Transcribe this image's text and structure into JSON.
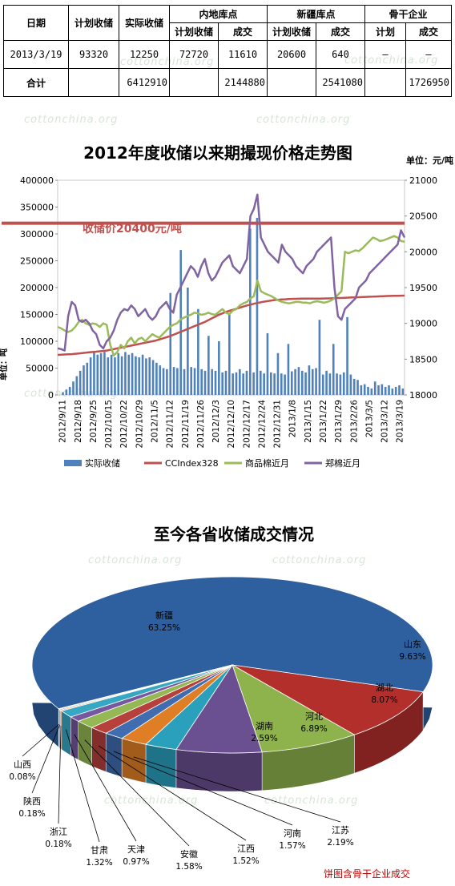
{
  "watermark": "cottonchina.org",
  "table": {
    "headers": {
      "date": "日期",
      "plan": "计划收储",
      "actual": "实际收储",
      "inland": "内地库点",
      "xinjiang": "新疆库点",
      "backbone": "骨干企业",
      "sub_plan": "计划收储",
      "sub_deal": "成交",
      "sub_plan_short": "计划"
    },
    "rows": [
      {
        "date": "2013/3/19",
        "plan": "93320",
        "actual": "12250",
        "inland_plan": "72720",
        "inland_deal": "11610",
        "xj_plan": "20600",
        "xj_deal": "640",
        "bb_plan": "–",
        "bb_deal": "–"
      },
      {
        "date": "合计",
        "plan": "",
        "actual": "6412910",
        "inland_plan": "",
        "inland_deal": "2144880",
        "xj_plan": "",
        "xj_deal": "2541080",
        "bb_plan": "",
        "bb_deal": "1726950"
      }
    ]
  },
  "chart_data": [
    {
      "type": "line",
      "title": "2012年度收储以来期撮现价格走势图",
      "unit_right": "单位：元/吨",
      "ylabel_left": "单位：吨",
      "annotation": "收储价20400元/吨",
      "y_left_ticks": [
        "0",
        "50000",
        "100000",
        "150000",
        "200000",
        "250000",
        "300000",
        "350000",
        "400000"
      ],
      "y_right_ticks": [
        "18000",
        "18500",
        "19000",
        "19500",
        "20000",
        "20500",
        "21000"
      ],
      "ylim_left": [
        0,
        400000
      ],
      "ylim_right": [
        18000,
        21000
      ],
      "storage_price": 20400,
      "x_ticks": [
        "2012/9/11",
        "2012/9/18",
        "2012/9/25",
        "2012/10/15",
        "2012/10/22",
        "2012/10/29",
        "2012/11/5",
        "2012/11/12",
        "2012/11/19",
        "2012/11/26",
        "2012/12/3",
        "2012/12/10",
        "2012/12/17",
        "2012/12/24",
        "2012/12/31",
        "2013/1/8",
        "2013/1/15",
        "2013/1/22",
        "2013/1/29",
        "2013/2/26",
        "2013/3/5",
        "2013/3/12",
        "2013/3/19"
      ],
      "legend": [
        "实际收储",
        "CCIndex328",
        "商品棉近月",
        "郑棉近月"
      ],
      "colors": {
        "actual": "#4f81bd",
        "ccindex": "#c0504d",
        "spot": "#9bbb59",
        "futures": "#8064a2",
        "price_line": "#c0504d"
      },
      "series_actual": [
        0,
        5000,
        10000,
        15000,
        25000,
        35000,
        45000,
        55000,
        60000,
        70000,
        80000,
        75000,
        78000,
        80000,
        70000,
        75000,
        70000,
        78000,
        72000,
        80000,
        75000,
        78000,
        72000,
        70000,
        75000,
        68000,
        70000,
        65000,
        60000,
        55000,
        50000,
        48000,
        190000,
        52000,
        50000,
        270000,
        48000,
        200000,
        52000,
        50000,
        160000,
        48000,
        45000,
        110000,
        48000,
        45000,
        100000,
        42000,
        45000,
        150000,
        40000,
        42000,
        48000,
        40000,
        45000,
        310000,
        42000,
        330000,
        45000,
        40000,
        115000,
        42000,
        40000,
        78000,
        40000,
        38000,
        95000,
        44000,
        48000,
        52000,
        45000,
        42000,
        55000,
        48000,
        50000,
        140000,
        38000,
        45000,
        40000,
        95000,
        40000,
        38000,
        42000,
        145000,
        38000,
        30000,
        28000,
        18000,
        20000,
        15000,
        12000,
        25000,
        18000,
        20000,
        15000,
        18000,
        12000,
        15000,
        18000,
        12000
      ],
      "series_ccindex": [
        18560,
        18562,
        18565,
        18568,
        18570,
        18575,
        18580,
        18585,
        18590,
        18595,
        18600,
        18605,
        18610,
        18615,
        18620,
        18630,
        18640,
        18650,
        18660,
        18670,
        18680,
        18690,
        18700,
        18710,
        18720,
        18730,
        18740,
        18750,
        18760,
        18775,
        18790,
        18805,
        18820,
        18840,
        18860,
        18880,
        18900,
        18920,
        18940,
        18960,
        18980,
        19000,
        19020,
        19045,
        19070,
        19095,
        19120,
        19140,
        19160,
        19175,
        19190,
        19205,
        19220,
        19235,
        19250,
        19262,
        19274,
        19285,
        19295,
        19304,
        19312,
        19320,
        19326,
        19330,
        19334,
        19337,
        19340,
        19342,
        19343,
        19344,
        19345,
        19345,
        19345,
        19345,
        19346,
        19347,
        19348,
        19349,
        19350,
        19352,
        19354,
        19356,
        19358,
        19360,
        19362,
        19364,
        19366,
        19368,
        19370,
        19372,
        19374,
        19376,
        19378,
        19380,
        19382,
        19384,
        19385,
        19386,
        19387,
        19388
      ],
      "series_spot": [
        18950,
        18930,
        18900,
        18880,
        18900,
        18950,
        19020,
        19050,
        19000,
        18980,
        19000,
        18990,
        18950,
        19000,
        18980,
        18700,
        18550,
        18600,
        18700,
        18650,
        18750,
        18800,
        18720,
        18780,
        18800,
        18750,
        18800,
        18850,
        18820,
        18800,
        18850,
        18900,
        18950,
        18980,
        19000,
        19050,
        19080,
        19100,
        19120,
        19150,
        19140,
        19120,
        19130,
        19150,
        19130,
        19120,
        19160,
        19200,
        19150,
        19130,
        19180,
        19200,
        19250,
        19280,
        19300,
        19350,
        19380,
        19600,
        19450,
        19420,
        19400,
        19380,
        19350,
        19320,
        19300,
        19290,
        19280,
        19290,
        19300,
        19300,
        19290,
        19290,
        19280,
        19300,
        19310,
        19300,
        19290,
        19300,
        19320,
        19350,
        19400,
        19450,
        20000,
        19980,
        20000,
        20020,
        20010,
        20050,
        20100,
        20150,
        20200,
        20180,
        20150,
        20160,
        20180,
        20200,
        20220,
        20200,
        20150,
        20140
      ],
      "series_futures": [
        18650,
        18640,
        18620,
        19100,
        19300,
        19250,
        19050,
        19020,
        19050,
        19000,
        18900,
        18850,
        18700,
        18650,
        18750,
        18800,
        18900,
        19050,
        19150,
        19200,
        19180,
        19250,
        19200,
        19100,
        19150,
        19200,
        19100,
        19050,
        19100,
        19200,
        19250,
        19300,
        19200,
        19150,
        19400,
        19500,
        19600,
        19700,
        19800,
        19750,
        19650,
        19800,
        19900,
        19700,
        19600,
        19650,
        19750,
        19850,
        19900,
        19950,
        19800,
        19750,
        19700,
        19800,
        19900,
        20500,
        20600,
        20800,
        20200,
        20100,
        20000,
        19950,
        19900,
        19850,
        20100,
        20000,
        19950,
        19900,
        19800,
        19750,
        19700,
        19800,
        19850,
        19900,
        20000,
        20050,
        20100,
        20150,
        20200,
        19500,
        19100,
        19050,
        19200,
        19250,
        19300,
        19350,
        19500,
        19550,
        19600,
        19700,
        19750,
        19800,
        19850,
        19900,
        19950,
        20000,
        20050,
        20100,
        20300,
        20200
      ]
    },
    {
      "type": "pie",
      "title": "至今各省收储成交情况",
      "note": "饼图含骨干企业成交",
      "slices": [
        {
          "label": "新疆",
          "value": 63.25,
          "pct": "63.25%",
          "color": "#2e5f9e"
        },
        {
          "label": "山东",
          "value": 9.63,
          "pct": "9.63%",
          "color": "#b32f2c"
        },
        {
          "label": "湖北",
          "value": 8.07,
          "pct": "8.07%",
          "color": "#8eb24c"
        },
        {
          "label": "河北",
          "value": 6.89,
          "pct": "6.89%",
          "color": "#6a4f91"
        },
        {
          "label": "湖南",
          "value": 2.59,
          "pct": "2.59%",
          "color": "#2aa0bd"
        },
        {
          "label": "江苏",
          "value": 2.19,
          "pct": "2.19%",
          "color": "#e07e26"
        },
        {
          "label": "河南",
          "value": 1.57,
          "pct": "1.57%",
          "color": "#3f6db0"
        },
        {
          "label": "江西",
          "value": 1.52,
          "pct": "1.52%",
          "color": "#b6403c"
        },
        {
          "label": "安徽",
          "value": 1.58,
          "pct": "1.58%",
          "color": "#93b854"
        },
        {
          "label": "天津",
          "value": 0.97,
          "pct": "0.97%",
          "color": "#76589f"
        },
        {
          "label": "甘肃",
          "value": 1.32,
          "pct": "1.32%",
          "color": "#37a8c4"
        },
        {
          "label": "浙江",
          "value": 0.18,
          "pct": "0.18%",
          "color": "#f08e3a"
        },
        {
          "label": "陕西",
          "value": 0.18,
          "pct": "0.18%",
          "color": "#8fa8d0"
        },
        {
          "label": "山西",
          "value": 0.08,
          "pct": "0.08%",
          "color": "#d49a96"
        }
      ]
    }
  ]
}
